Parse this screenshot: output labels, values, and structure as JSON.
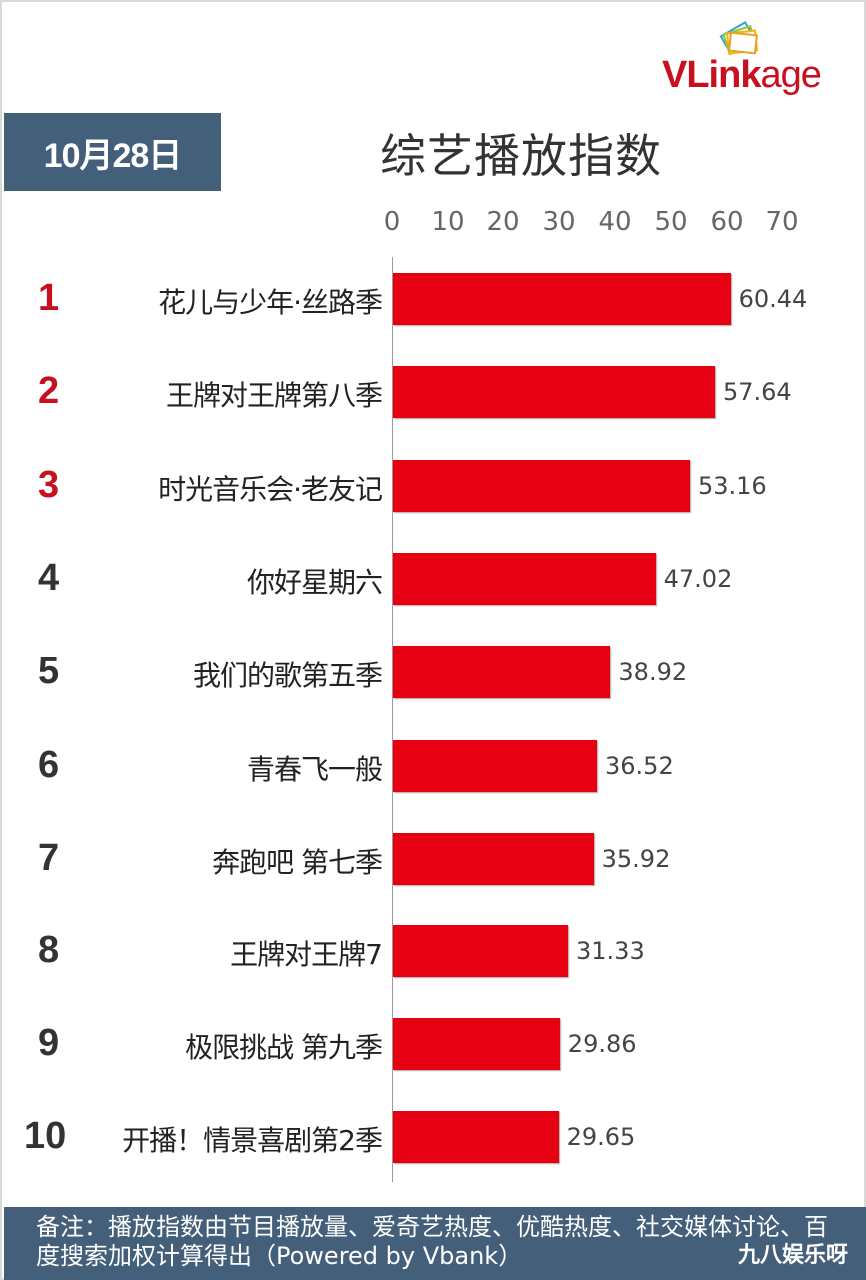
{
  "logo": {
    "brand_bold": "VLink",
    "brand_light": "age"
  },
  "date_badge": "10月28日",
  "title": "综艺播放指数",
  "footer": {
    "note": "备注：播放指数由节目播放量、爱奇艺热度、优酷热度、社交媒体讨论、百度搜索加权计算得出（Powered by Vbank）",
    "watermark": "九八娱乐呀"
  },
  "colors": {
    "bar": "#e60012",
    "top_rank": "#c8101e",
    "banner": "#445f7a"
  },
  "rows": [
    {
      "rank": "1",
      "name": "花儿与少年·丝路季",
      "value": "60.44"
    },
    {
      "rank": "2",
      "name": "王牌对王牌第八季",
      "value": "57.64"
    },
    {
      "rank": "3",
      "name": "时光音乐会·老友记",
      "value": "53.16"
    },
    {
      "rank": "4",
      "name": "你好星期六",
      "value": "47.02"
    },
    {
      "rank": "5",
      "name": "我们的歌第五季",
      "value": "38.92"
    },
    {
      "rank": "6",
      "name": "青春飞一般",
      "value": "36.52"
    },
    {
      "rank": "7",
      "name": "奔跑吧 第七季",
      "value": "35.92"
    },
    {
      "rank": "8",
      "name": "王牌对王牌7",
      "value": "31.33"
    },
    {
      "rank": "9",
      "name": "极限挑战 第九季",
      "value": "29.86"
    },
    {
      "rank": "10",
      "name": "开播！情景喜剧第2季",
      "value": "29.65"
    }
  ],
  "chart_data": {
    "type": "bar",
    "orientation": "horizontal",
    "title": "综艺播放指数",
    "subtitle": "10月28日",
    "categories": [
      "花儿与少年·丝路季",
      "王牌对王牌第八季",
      "时光音乐会·老友记",
      "你好星期六",
      "我们的歌第五季",
      "青春飞一般",
      "奔跑吧 第七季",
      "王牌对王牌7",
      "极限挑战 第九季",
      "开播！情景喜剧第2季"
    ],
    "values": [
      60.44,
      57.64,
      53.16,
      47.02,
      38.92,
      36.52,
      35.92,
      31.33,
      29.86,
      29.65
    ],
    "xlabel": "",
    "ylabel": "",
    "xlim": [
      0,
      70
    ],
    "ticks": [
      "0",
      "10",
      "20",
      "30",
      "40",
      "50",
      "60",
      "70"
    ],
    "tick_position": "top",
    "grid": false,
    "legend": null,
    "data_labels": true
  }
}
